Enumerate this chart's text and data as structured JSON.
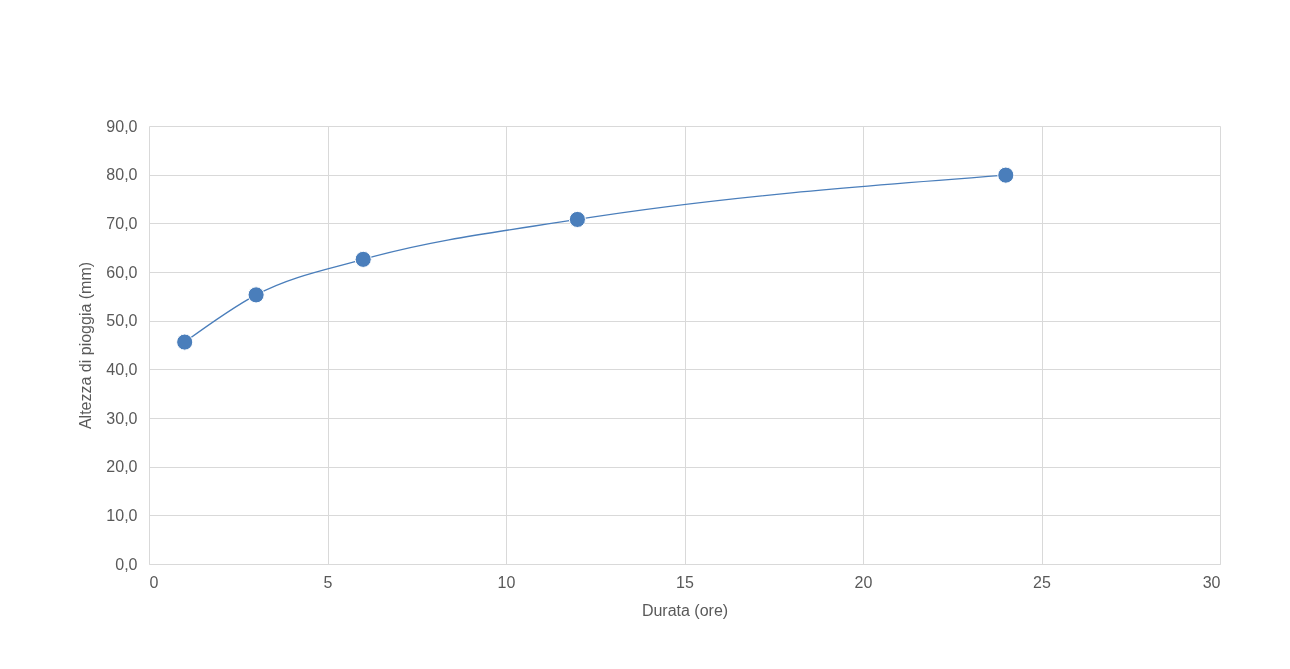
{
  "chart_data": {
    "type": "line",
    "xlabel": "Durata (ore)",
    "ylabel": "Altezza di pioggia (mm)",
    "x": [
      1,
      3,
      6,
      12,
      24
    ],
    "series": [
      {
        "color": "#4a7ebb",
        "values": [
          45.6,
          55.3,
          62.6,
          70.8,
          79.9
        ]
      }
    ],
    "xlim": [
      0,
      30
    ],
    "xticks": [
      0,
      5,
      10,
      15,
      20,
      25,
      30
    ],
    "ylim": [
      0,
      90
    ],
    "yticks": [
      {
        "value": 0,
        "label": "0,0"
      },
      {
        "value": 10,
        "label": "10,0"
      },
      {
        "value": 20,
        "label": "20,0"
      },
      {
        "value": 30,
        "label": "30,0"
      },
      {
        "value": 40,
        "label": "40,0"
      },
      {
        "value": 50,
        "label": "50,0"
      },
      {
        "value": 60,
        "label": "60,0"
      },
      {
        "value": 70,
        "label": "70,0"
      },
      {
        "value": 80,
        "label": "80,0"
      },
      {
        "value": 90,
        "label": "90,0"
      }
    ],
    "grid": true,
    "marker": "circle",
    "line_style": "solid"
  }
}
